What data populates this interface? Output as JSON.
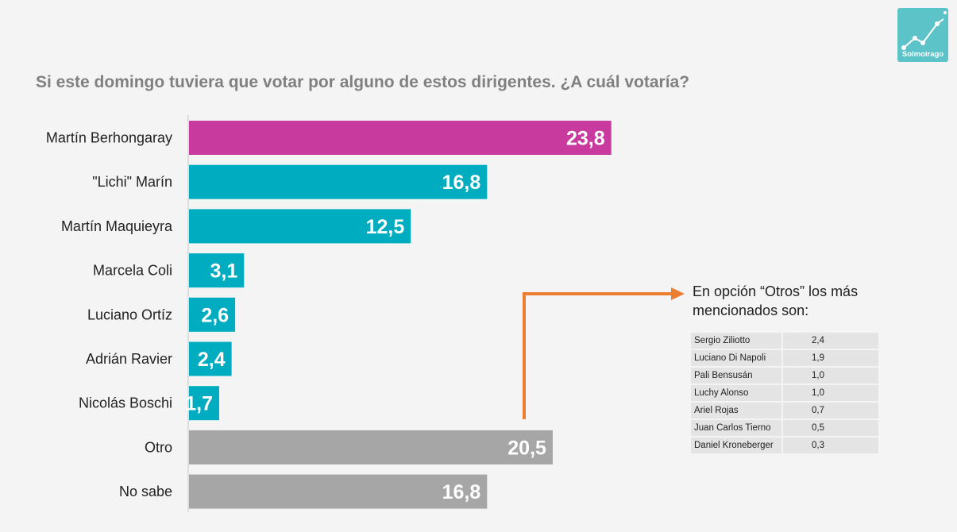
{
  "title": "Si este domingo tuviera que votar por alguno de estos dirigentes. ¿A cuál votaría?",
  "logo": {
    "text": "Solmoirago",
    "icon": "trend-line-icon"
  },
  "colors": {
    "highlight": "#c83a9e",
    "candidate": "#00adc0",
    "other": "#a6a6a6",
    "arrow": "#ed7d31"
  },
  "chart_data": {
    "type": "bar",
    "orientation": "horizontal",
    "title": "Si este domingo tuviera que votar por alguno de estos dirigentes. ¿A cuál votaría?",
    "categories": [
      "Martín Berhongaray",
      "\"Lichi\" Marín",
      "Martín Maquieyra",
      "Marcela Coli",
      "Luciano Ortíz",
      "Adrián Ravier",
      "Nicolás Boschi",
      "Otro",
      "No sabe"
    ],
    "values": [
      23.8,
      16.8,
      12.5,
      3.1,
      2.6,
      2.4,
      1.7,
      20.5,
      16.8
    ],
    "labels": [
      "23,8",
      "16,8",
      "12,5",
      "3,1",
      "2,6",
      "2,4",
      "1,7",
      "20,5",
      "16,8"
    ],
    "bar_colors": [
      "#c83a9e",
      "#00adc0",
      "#00adc0",
      "#00adc0",
      "#00adc0",
      "#00adc0",
      "#00adc0",
      "#a6a6a6",
      "#a6a6a6"
    ],
    "xlim": [
      0,
      26.5
    ],
    "xlabel": "",
    "ylabel": ""
  },
  "others": {
    "title": "En opción “Otros” los más\nmencionados son:",
    "rows": [
      {
        "name": "Sergio Ziliotto",
        "value": "2,4"
      },
      {
        "name": "Luciano Di Napoli",
        "value": "1,9"
      },
      {
        "name": "Pali Bensusán",
        "value": "1,0"
      },
      {
        "name": "Luchy Alonso",
        "value": "1,0"
      },
      {
        "name": "Ariel Rojas",
        "value": "0,7"
      },
      {
        "name": "Juan Carlos Tierno",
        "value": "0,5"
      },
      {
        "name": "Daniel Kroneberger",
        "value": "0,3"
      }
    ]
  }
}
